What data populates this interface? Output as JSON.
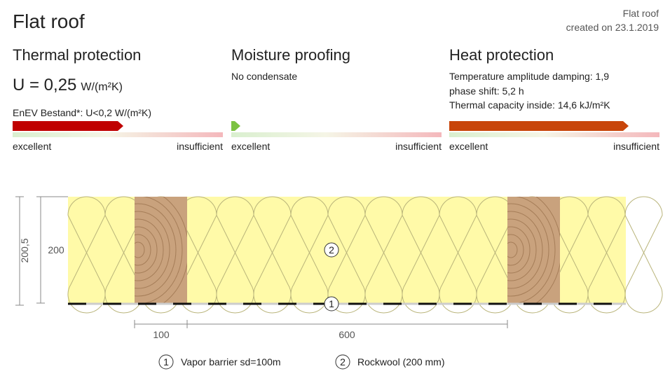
{
  "header": {
    "title": "Flat roof",
    "meta_title": "Flat roof",
    "created": "created on 23.1.2019"
  },
  "panels": [
    {
      "title": "Thermal protection",
      "value": "U = 0,25",
      "unit": "W/(m²K)",
      "note": "EnEV Bestand*: U<0,2 W/(m²K)",
      "scale_low": "excellent",
      "scale_high": "insufficient"
    },
    {
      "title": "Moisture proofing",
      "lines": [
        "No condensate"
      ],
      "scale_low": "excellent",
      "scale_high": "insufficient"
    },
    {
      "title": "Heat protection",
      "lines": [
        "Temperature amplitude damping: 1,9",
        "phase shift: 5,2 h",
        "Thermal capacity inside: 14,6 kJ/m²K"
      ],
      "scale_low": "excellent",
      "scale_high": "insufficient"
    }
  ],
  "dimensions": {
    "total_height": "200,5",
    "insulation_height": "200",
    "beam_width": "100",
    "spacing": "600"
  },
  "layers": [
    {
      "number": "1",
      "label": "Vapor barrier sd=100m"
    },
    {
      "number": "2",
      "label": "Rockwool (200 mm)"
    }
  ]
}
